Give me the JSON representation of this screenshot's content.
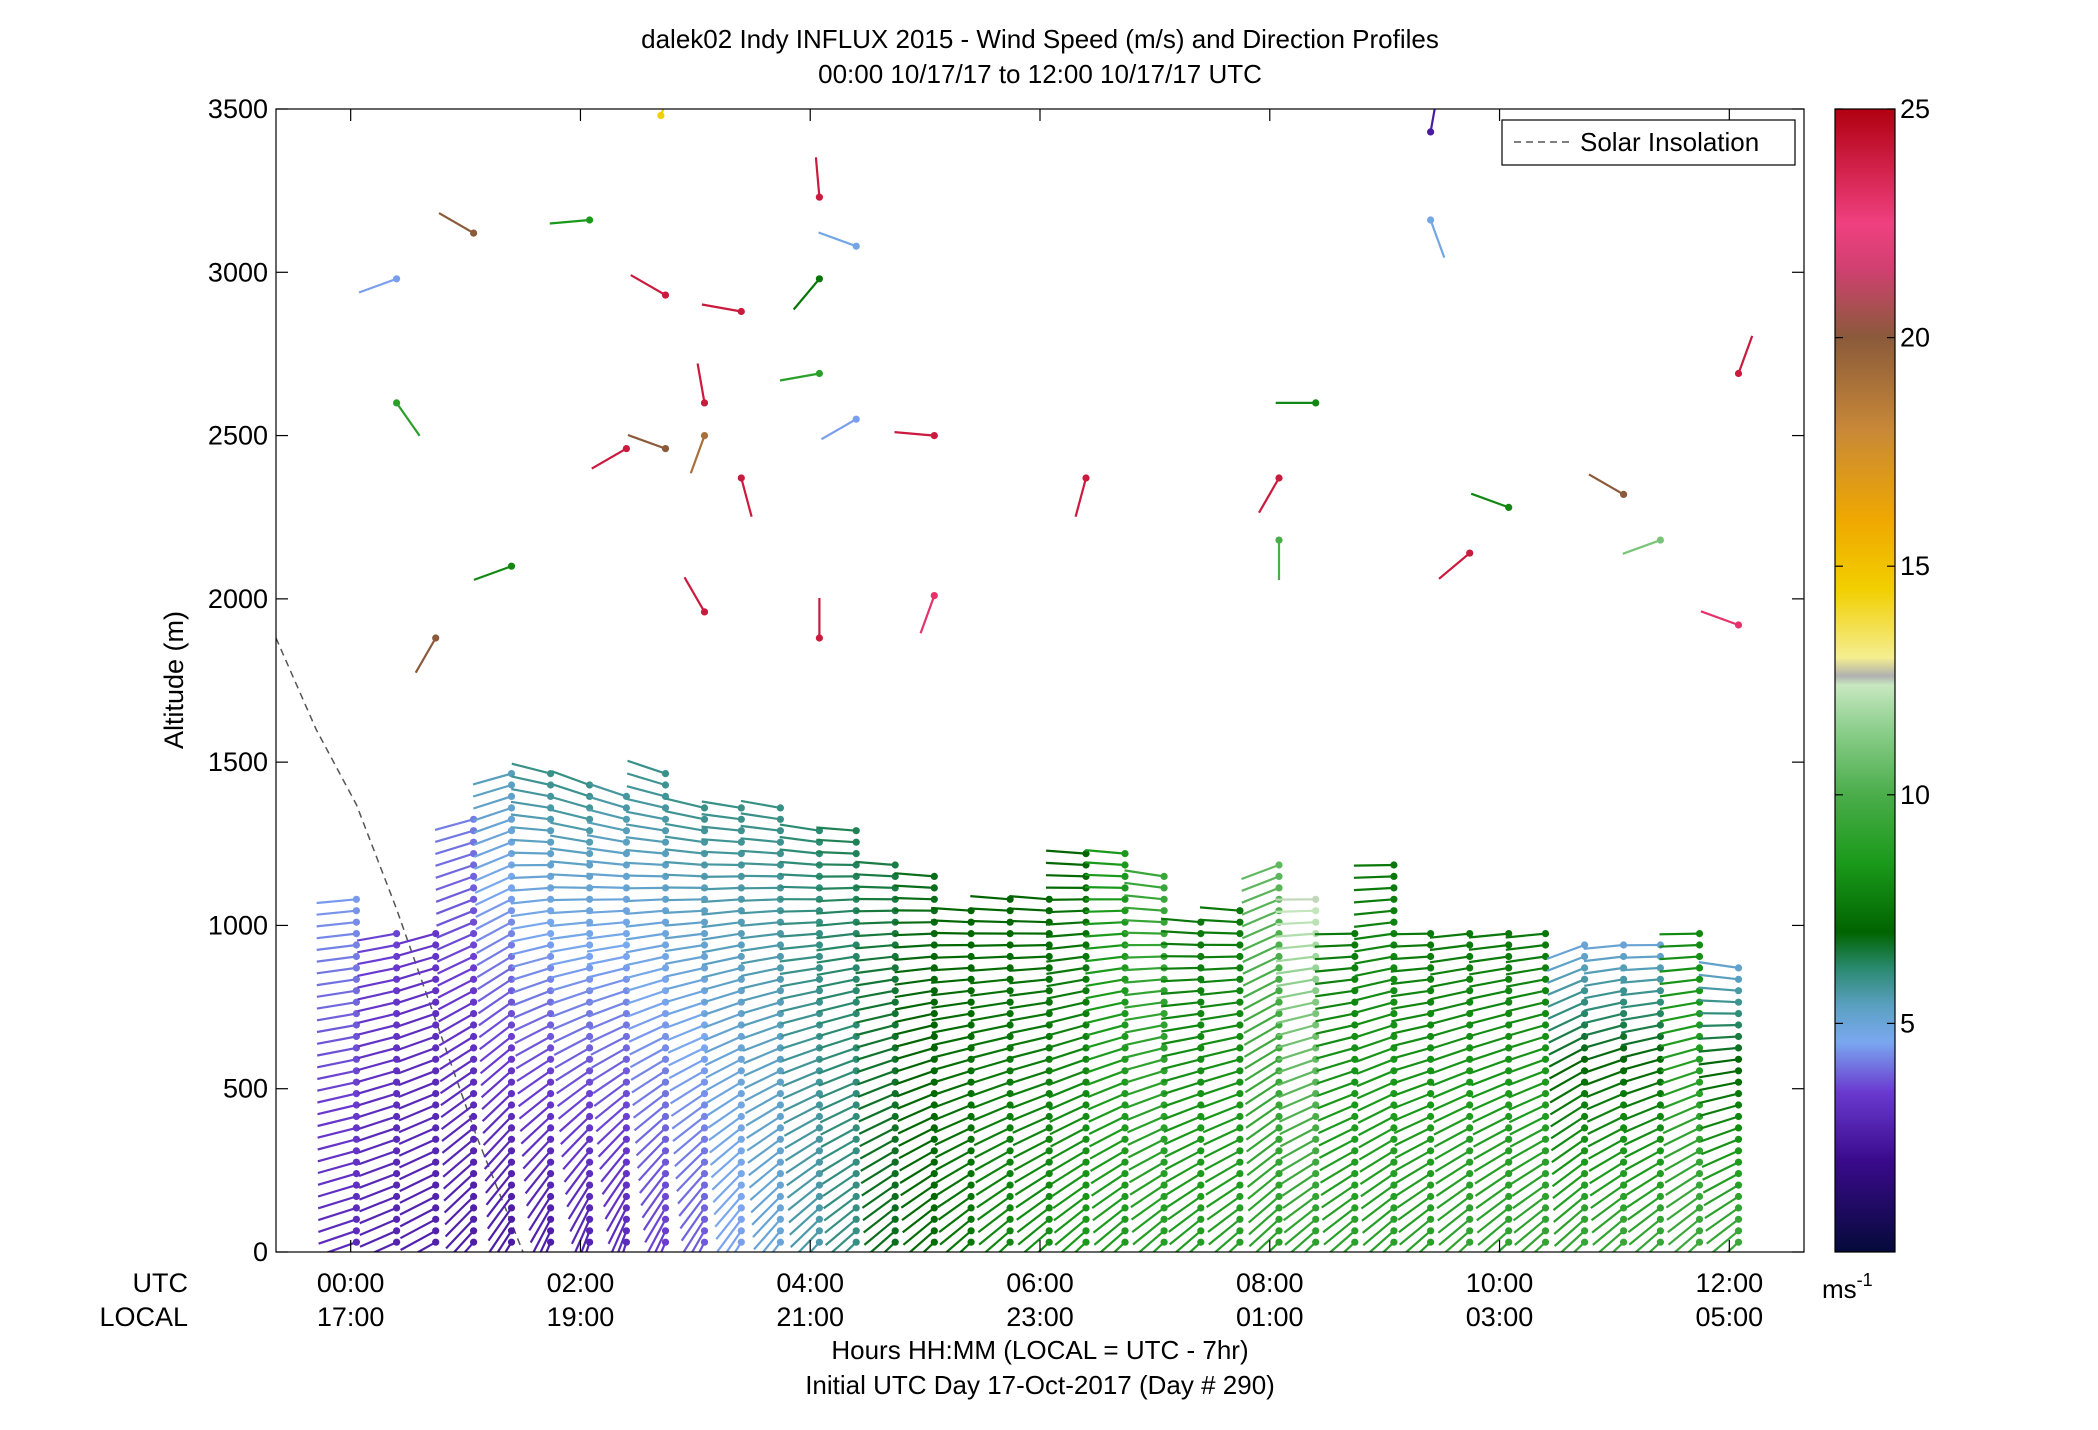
{
  "chart_data": {
    "type": "wind-barb-profile",
    "title": "dalek02 Indy INFLUX 2015 - Wind Speed (m/s) and Direction Profiles",
    "subtitle": "00:00 10/17/17 to 12:00 10/17/17  UTC",
    "ylabel": "Altitude (m)",
    "xlabel": "Hours HH:MM  (LOCAL = UTC - 7hr)",
    "xlabel2": "Initial UTC Day 17-Oct-2017 (Day # 290)",
    "row_labels": {
      "utc": "UTC",
      "local": "LOCAL"
    },
    "xlim_hours": [
      -0.65,
      12.65
    ],
    "ylim": [
      0,
      3500
    ],
    "x_ticks": [
      {
        "hour": 0,
        "utc": "00:00",
        "local": "17:00"
      },
      {
        "hour": 2,
        "utc": "02:00",
        "local": "19:00"
      },
      {
        "hour": 4,
        "utc": "04:00",
        "local": "21:00"
      },
      {
        "hour": 6,
        "utc": "06:00",
        "local": "23:00"
      },
      {
        "hour": 8,
        "utc": "08:00",
        "local": "01:00"
      },
      {
        "hour": 10,
        "utc": "10:00",
        "local": "03:00"
      },
      {
        "hour": 12,
        "utc": "12:00",
        "local": "05:00"
      }
    ],
    "y_ticks": [
      {
        "value": 0,
        "label": "0"
      },
      {
        "value": 500,
        "label": "500"
      },
      {
        "value": 1000,
        "label": "1000"
      },
      {
        "value": 1500,
        "label": "1500"
      },
      {
        "value": 2000,
        "label": "2000"
      },
      {
        "value": 2500,
        "label": "2500"
      },
      {
        "value": 3000,
        "label": "3000"
      },
      {
        "value": 3500,
        "label": "3500"
      }
    ],
    "legend": {
      "entry": "Solar Insolation",
      "position": "top-right"
    },
    "colorbar": {
      "min": 0,
      "max": 25,
      "unit": "ms",
      "unit_exp": "-1",
      "ticks": [
        {
          "value": 5,
          "label": "5"
        },
        {
          "value": 10,
          "label": "10"
        },
        {
          "value": 15,
          "label": "15"
        },
        {
          "value": 20,
          "label": "20"
        },
        {
          "value": 25,
          "label": "25"
        }
      ],
      "stops": [
        {
          "v": 0,
          "color": "#050a3a"
        },
        {
          "v": 2,
          "color": "#3a0a8c"
        },
        {
          "v": 3.5,
          "color": "#6a3ad0"
        },
        {
          "v": 4.6,
          "color": "#7aa8f0"
        },
        {
          "v": 5.4,
          "color": "#5aa0c0"
        },
        {
          "v": 6.2,
          "color": "#2a8a70"
        },
        {
          "v": 7,
          "color": "#006400"
        },
        {
          "v": 8.5,
          "color": "#1a9a1a"
        },
        {
          "v": 10,
          "color": "#4aad4a"
        },
        {
          "v": 11.5,
          "color": "#90d090"
        },
        {
          "v": 12.4,
          "color": "#c8e8c0"
        },
        {
          "v": 12.6,
          "color": "#b0b0b0"
        },
        {
          "v": 13,
          "color": "#f4ee90"
        },
        {
          "v": 14.5,
          "color": "#f2cf00"
        },
        {
          "v": 16,
          "color": "#f0a800"
        },
        {
          "v": 18,
          "color": "#c88838"
        },
        {
          "v": 20,
          "color": "#8a5a3a"
        },
        {
          "v": 21.5,
          "color": "#d04070"
        },
        {
          "v": 22.5,
          "color": "#f04080"
        },
        {
          "v": 25,
          "color": "#b00010"
        }
      ]
    },
    "insolation_curve": [
      {
        "hour": -0.65,
        "altitude": 1880
      },
      {
        "hour": -0.3,
        "altitude": 1600
      },
      {
        "hour": 0.05,
        "altitude": 1370
      },
      {
        "hour": 0.4,
        "altitude": 1050
      },
      {
        "hour": 0.75,
        "altitude": 700
      },
      {
        "hour": 1.1,
        "altitude": 350
      },
      {
        "hour": 1.5,
        "altitude": 0
      }
    ],
    "isolated_barbs": [
      {
        "hour": 2.7,
        "altitude": 3480,
        "speed": 14.5,
        "dir": 20
      },
      {
        "hour": 4.08,
        "altitude": 3230,
        "speed": 24,
        "dir": 355
      },
      {
        "hour": 0.4,
        "altitude": 2980,
        "speed": 4.5,
        "dir": 250
      },
      {
        "hour": 1.07,
        "altitude": 3120,
        "speed": 20,
        "dir": 300
      },
      {
        "hour": 2.08,
        "altitude": 3160,
        "speed": 8.5,
        "dir": 265
      },
      {
        "hour": 4.4,
        "altitude": 3080,
        "speed": 4.8,
        "dir": 290
      },
      {
        "hour": 4.08,
        "altitude": 2980,
        "speed": 7.5,
        "dir": 220
      },
      {
        "hour": 2.74,
        "altitude": 2930,
        "speed": 24,
        "dir": 300
      },
      {
        "hour": 3.4,
        "altitude": 2880,
        "speed": 24,
        "dir": 280
      },
      {
        "hour": 0.4,
        "altitude": 2600,
        "speed": 9,
        "dir": 145
      },
      {
        "hour": 4.08,
        "altitude": 2690,
        "speed": 9,
        "dir": 260
      },
      {
        "hour": 3.08,
        "altitude": 2600,
        "speed": 24,
        "dir": 350
      },
      {
        "hour": 4.4,
        "altitude": 2550,
        "speed": 4.5,
        "dir": 240
      },
      {
        "hour": 5.08,
        "altitude": 2500,
        "speed": 24,
        "dir": 275
      },
      {
        "hour": 2.4,
        "altitude": 2460,
        "speed": 24,
        "dir": 240
      },
      {
        "hour": 2.74,
        "altitude": 2460,
        "speed": 20,
        "dir": 290
      },
      {
        "hour": 3.08,
        "altitude": 2500,
        "speed": 19,
        "dir": 200
      },
      {
        "hour": 3.4,
        "altitude": 2370,
        "speed": 24,
        "dir": 165
      },
      {
        "hour": 6.4,
        "altitude": 2370,
        "speed": 24,
        "dir": 195
      },
      {
        "hour": 8.08,
        "altitude": 2370,
        "speed": 24,
        "dir": 210
      },
      {
        "hour": 8.4,
        "altitude": 2600,
        "speed": 8,
        "dir": 270
      },
      {
        "hour": 9.4,
        "altitude": 3430,
        "speed": 2.5,
        "dir": 10
      },
      {
        "hour": 9.4,
        "altitude": 3160,
        "speed": 4.8,
        "dir": 160
      },
      {
        "hour": 10.08,
        "altitude": 2280,
        "speed": 8,
        "dir": 290
      },
      {
        "hour": 11.08,
        "altitude": 2320,
        "speed": 20,
        "dir": 300
      },
      {
        "hour": 11.4,
        "altitude": 2180,
        "speed": 11,
        "dir": 250
      },
      {
        "hour": 12.08,
        "altitude": 2690,
        "speed": 24,
        "dir": 20
      },
      {
        "hour": 12.08,
        "altitude": 1920,
        "speed": 23,
        "dir": 290
      },
      {
        "hour": 0.74,
        "altitude": 1880,
        "speed": 20,
        "dir": 210
      },
      {
        "hour": 1.4,
        "altitude": 2100,
        "speed": 8,
        "dir": 250
      },
      {
        "hour": 3.08,
        "altitude": 1960,
        "speed": 24,
        "dir": 330
      },
      {
        "hour": 4.08,
        "altitude": 1880,
        "speed": 24,
        "dir": 0
      },
      {
        "hour": 5.08,
        "altitude": 2010,
        "speed": 23,
        "dir": 200
      },
      {
        "hour": 8.08,
        "altitude": 2180,
        "speed": 10,
        "dir": 180
      },
      {
        "hour": 9.74,
        "altitude": 2140,
        "speed": 24,
        "dir": 230
      }
    ],
    "profile_columns": [
      {
        "hour": 0.05,
        "top": 1100,
        "step": 35,
        "base_speed": 3.0,
        "base_dir": 250,
        "upper_speed": 4.5,
        "upper_dir": 265
      },
      {
        "hour": 0.4,
        "top": 980,
        "step": 35,
        "base_speed": 2.8,
        "base_dir": 245,
        "upper_speed": 3.6,
        "upper_dir": 260
      },
      {
        "hour": 0.74,
        "top": 1000,
        "step": 35,
        "base_speed": 2.7,
        "base_dir": 240,
        "upper_speed": 3.4,
        "upper_dir": 255
      },
      {
        "hour": 1.07,
        "top": 1340,
        "step": 35,
        "base_speed": 2.6,
        "base_dir": 220,
        "upper_speed": 4.2,
        "upper_dir": 255
      },
      {
        "hour": 1.4,
        "top": 1490,
        "step": 35,
        "base_speed": 2.5,
        "base_dir": 210,
        "upper_speed": 5.5,
        "upper_dir": 255
      },
      {
        "hour": 1.74,
        "top": 1480,
        "step": 35,
        "base_speed": 2.6,
        "base_dir": 200,
        "upper_speed": 6.0,
        "upper_dir": 285
      },
      {
        "hour": 2.08,
        "top": 1430,
        "step": 35,
        "base_speed": 2.8,
        "base_dir": 195,
        "upper_speed": 6.0,
        "upper_dir": 290
      },
      {
        "hour": 2.4,
        "top": 1420,
        "step": 35,
        "base_speed": 3.0,
        "base_dir": 195,
        "upper_speed": 5.8,
        "upper_dir": 290
      },
      {
        "hour": 2.74,
        "top": 1490,
        "step": 35,
        "base_speed": 3.5,
        "base_dir": 200,
        "upper_speed": 6.0,
        "upper_dir": 290
      },
      {
        "hour": 3.08,
        "top": 1390,
        "step": 35,
        "base_speed": 3.8,
        "base_dir": 205,
        "upper_speed": 6.0,
        "upper_dir": 285
      },
      {
        "hour": 3.4,
        "top": 1380,
        "step": 35,
        "base_speed": 4.5,
        "base_dir": 210,
        "upper_speed": 6.0,
        "upper_dir": 280
      },
      {
        "hour": 3.74,
        "top": 1360,
        "step": 35,
        "base_speed": 5.0,
        "base_dir": 215,
        "upper_speed": 6.0,
        "upper_dir": 280
      },
      {
        "hour": 4.08,
        "top": 1320,
        "step": 35,
        "base_speed": 5.6,
        "base_dir": 220,
        "upper_speed": 6.2,
        "upper_dir": 280
      },
      {
        "hour": 4.4,
        "top": 1300,
        "step": 35,
        "base_speed": 6.0,
        "base_dir": 225,
        "upper_speed": 6.4,
        "upper_dir": 275
      },
      {
        "hour": 4.74,
        "top": 1200,
        "step": 35,
        "base_speed": 6.8,
        "base_dir": 225,
        "upper_speed": 6.5,
        "upper_dir": 275
      },
      {
        "hour": 5.08,
        "top": 1160,
        "step": 35,
        "base_speed": 7.2,
        "base_dir": 225,
        "upper_speed": 6.8,
        "upper_dir": 275
      },
      {
        "hour": 5.4,
        "top": 1070,
        "step": 35,
        "base_speed": 7.5,
        "base_dir": 225,
        "upper_speed": 7.0,
        "upper_dir": 275
      },
      {
        "hour": 5.74,
        "top": 1090,
        "step": 35,
        "base_speed": 8.0,
        "base_dir": 225,
        "upper_speed": 7.0,
        "upper_dir": 275
      },
      {
        "hour": 6.08,
        "top": 1090,
        "step": 35,
        "base_speed": 8.2,
        "base_dir": 225,
        "upper_speed": 7.0,
        "upper_dir": 275
      },
      {
        "hour": 6.4,
        "top": 1240,
        "step": 35,
        "base_speed": 8.5,
        "base_dir": 225,
        "upper_speed": 7.0,
        "upper_dir": 275
      },
      {
        "hour": 6.74,
        "top": 1220,
        "step": 35,
        "base_speed": 8.6,
        "base_dir": 225,
        "upper_speed": 8.5,
        "upper_dir": 275
      },
      {
        "hour": 7.08,
        "top": 1180,
        "step": 35,
        "base_speed": 8.8,
        "base_dir": 225,
        "upper_speed": 9.5,
        "upper_dir": 280
      },
      {
        "hour": 7.4,
        "top": 1010,
        "step": 35,
        "base_speed": 8.8,
        "base_dir": 225,
        "upper_speed": 7.5,
        "upper_dir": 275
      },
      {
        "hour": 7.74,
        "top": 1050,
        "step": 35,
        "base_speed": 8.9,
        "base_dir": 225,
        "upper_speed": 7.5,
        "upper_dir": 275
      },
      {
        "hour": 8.08,
        "top": 1210,
        "step": 35,
        "base_speed": 9.0,
        "base_dir": 225,
        "upper_speed": 10.5,
        "upper_dir": 250
      },
      {
        "hour": 8.4,
        "top": 1090,
        "step": 35,
        "base_speed": 9.0,
        "base_dir": 225,
        "upper_speed": 12.5,
        "upper_dir": 270
      },
      {
        "hour": 8.74,
        "top": 1000,
        "step": 35,
        "base_speed": 9.0,
        "base_dir": 225,
        "upper_speed": 7.5,
        "upper_dir": 270
      },
      {
        "hour": 9.08,
        "top": 1210,
        "step": 35,
        "base_speed": 9.0,
        "base_dir": 225,
        "upper_speed": 7.5,
        "upper_dir": 270
      },
      {
        "hour": 9.4,
        "top": 1000,
        "step": 35,
        "base_speed": 9.0,
        "base_dir": 225,
        "upper_speed": 7.5,
        "upper_dir": 270
      },
      {
        "hour": 9.74,
        "top": 1000,
        "step": 35,
        "base_speed": 9.2,
        "base_dir": 225,
        "upper_speed": 7.5,
        "upper_dir": 265
      },
      {
        "hour": 10.08,
        "top": 990,
        "step": 35,
        "base_speed": 9.2,
        "base_dir": 225,
        "upper_speed": 7.5,
        "upper_dir": 265
      },
      {
        "hour": 10.4,
        "top": 990,
        "step": 35,
        "base_speed": 9.3,
        "base_dir": 225,
        "upper_speed": 7.5,
        "upper_dir": 265
      },
      {
        "hour": 10.74,
        "top": 950,
        "step": 35,
        "base_speed": 9.4,
        "base_dir": 225,
        "upper_speed": 5.0,
        "upper_dir": 250
      },
      {
        "hour": 11.08,
        "top": 950,
        "step": 35,
        "base_speed": 9.5,
        "base_dir": 225,
        "upper_speed": 5.0,
        "upper_dir": 265
      },
      {
        "hour": 11.4,
        "top": 950,
        "step": 35,
        "base_speed": 9.5,
        "base_dir": 225,
        "upper_speed": 5.0,
        "upper_dir": 270
      },
      {
        "hour": 11.74,
        "top": 1000,
        "step": 35,
        "base_speed": 9.6,
        "base_dir": 225,
        "upper_speed": 8.0,
        "upper_dir": 270
      },
      {
        "hour": 12.08,
        "top": 900,
        "step": 35,
        "base_speed": 9.6,
        "base_dir": 225,
        "upper_speed": 5.0,
        "upper_dir": 280
      }
    ]
  }
}
